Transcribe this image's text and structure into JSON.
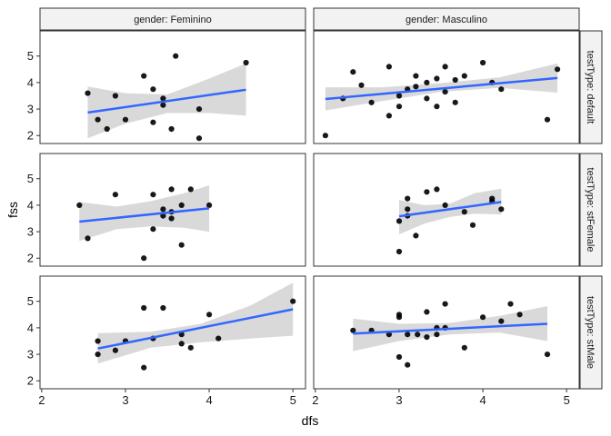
{
  "chart_data": {
    "type": "scatter",
    "xlabel": "dfs",
    "ylabel": "fss",
    "xlim": [
      1.98,
      5.15
    ],
    "ylim": [
      1.7,
      5.95
    ],
    "x_ticks": [
      2,
      3,
      4,
      5
    ],
    "y_ticks": [
      2,
      3,
      4,
      5
    ],
    "column_facets": [
      "gender: Feminino",
      "gender: Masculino"
    ],
    "row_facets": [
      "testType: default",
      "testType: stFemale",
      "testType: stMale"
    ],
    "colors": {
      "point": "#000000",
      "line": "#3366ff",
      "ribbon": "#d9d9d9"
    },
    "grid": false,
    "panels": [
      {
        "row": 0,
        "col": 0,
        "points": [
          [
            2.55,
            3.6
          ],
          [
            2.67,
            2.6
          ],
          [
            2.78,
            2.25
          ],
          [
            2.88,
            3.5
          ],
          [
            3.0,
            2.6
          ],
          [
            3.22,
            4.25
          ],
          [
            3.33,
            3.75
          ],
          [
            3.33,
            2.5
          ],
          [
            3.45,
            3.4
          ],
          [
            3.45,
            3.15
          ],
          [
            3.55,
            2.25
          ],
          [
            3.6,
            5.0
          ],
          [
            3.88,
            1.9
          ],
          [
            3.88,
            3.0
          ],
          [
            4.44,
            4.75
          ]
        ],
        "fit": {
          "x": [
            2.55,
            4.44
          ],
          "y": [
            2.87,
            3.73
          ]
        },
        "band": {
          "x": [
            2.55,
            3.0,
            3.5,
            4.0,
            4.44
          ],
          "lo": [
            1.9,
            2.45,
            2.85,
            2.85,
            2.75
          ],
          "hi": [
            3.85,
            3.6,
            3.55,
            4.15,
            4.72
          ]
        }
      },
      {
        "row": 0,
        "col": 1,
        "points": [
          [
            2.12,
            2.0
          ],
          [
            2.33,
            3.4
          ],
          [
            2.45,
            4.4
          ],
          [
            2.55,
            3.9
          ],
          [
            2.67,
            3.25
          ],
          [
            2.88,
            4.6
          ],
          [
            2.88,
            2.75
          ],
          [
            3.0,
            3.5
          ],
          [
            3.0,
            3.1
          ],
          [
            3.1,
            3.75
          ],
          [
            3.2,
            4.25
          ],
          [
            3.2,
            3.85
          ],
          [
            3.33,
            4.0
          ],
          [
            3.33,
            3.4
          ],
          [
            3.45,
            4.15
          ],
          [
            3.45,
            3.1
          ],
          [
            3.55,
            4.6
          ],
          [
            3.55,
            3.65
          ],
          [
            3.67,
            4.1
          ],
          [
            3.67,
            3.25
          ],
          [
            3.78,
            4.25
          ],
          [
            4.0,
            4.75
          ],
          [
            4.11,
            4.0
          ],
          [
            4.22,
            3.75
          ],
          [
            4.77,
            2.6
          ],
          [
            4.89,
            4.5
          ]
        ],
        "fit": {
          "x": [
            2.12,
            4.89
          ],
          "y": [
            3.38,
            4.17
          ]
        },
        "band": {
          "x": [
            2.12,
            2.8,
            3.5,
            4.2,
            4.89
          ],
          "lo": [
            2.95,
            3.3,
            3.65,
            3.8,
            3.62
          ],
          "hi": [
            3.82,
            3.82,
            3.98,
            4.2,
            4.72
          ]
        }
      },
      {
        "row": 1,
        "col": 0,
        "points": [
          [
            2.45,
            4.0
          ],
          [
            2.55,
            2.75
          ],
          [
            2.88,
            4.4
          ],
          [
            3.22,
            2.0
          ],
          [
            3.33,
            4.4
          ],
          [
            3.33,
            3.1
          ],
          [
            3.45,
            3.85
          ],
          [
            3.45,
            3.6
          ],
          [
            3.55,
            4.6
          ],
          [
            3.55,
            3.5
          ],
          [
            3.55,
            3.75
          ],
          [
            3.67,
            4.0
          ],
          [
            3.67,
            2.5
          ],
          [
            3.78,
            4.6
          ],
          [
            4.0,
            4.0
          ]
        ],
        "fit": {
          "x": [
            2.45,
            4.0
          ],
          "y": [
            3.38,
            3.88
          ]
        },
        "band": {
          "x": [
            2.45,
            2.9,
            3.3,
            3.7,
            4.0
          ],
          "lo": [
            2.65,
            3.1,
            3.2,
            3.15,
            3.0
          ],
          "hi": [
            4.12,
            3.95,
            4.15,
            4.45,
            4.75
          ]
        }
      },
      {
        "row": 1,
        "col": 1,
        "points": [
          [
            3.0,
            3.4
          ],
          [
            3.0,
            2.25
          ],
          [
            3.1,
            4.25
          ],
          [
            3.1,
            3.85
          ],
          [
            3.1,
            3.6
          ],
          [
            3.2,
            2.85
          ],
          [
            3.33,
            4.5
          ],
          [
            3.45,
            4.6
          ],
          [
            3.55,
            4.0
          ],
          [
            3.78,
            3.75
          ],
          [
            3.88,
            3.25
          ],
          [
            4.11,
            4.25
          ],
          [
            4.11,
            4.15
          ],
          [
            4.22,
            3.85
          ]
        ],
        "fit": {
          "x": [
            3.0,
            4.22
          ],
          "y": [
            3.58,
            4.12
          ]
        },
        "band": {
          "x": [
            3.0,
            3.3,
            3.6,
            3.9,
            4.22
          ],
          "lo": [
            2.9,
            3.3,
            3.55,
            3.68,
            3.65
          ],
          "hi": [
            4.2,
            4.0,
            4.05,
            4.45,
            4.62
          ]
        }
      },
      {
        "row": 2,
        "col": 0,
        "points": [
          [
            2.67,
            3.5
          ],
          [
            2.67,
            3.0
          ],
          [
            2.88,
            3.15
          ],
          [
            3.0,
            3.5
          ],
          [
            3.22,
            4.75
          ],
          [
            3.22,
            2.5
          ],
          [
            3.33,
            3.6
          ],
          [
            3.45,
            4.75
          ],
          [
            3.67,
            3.75
          ],
          [
            3.67,
            3.4
          ],
          [
            3.78,
            3.25
          ],
          [
            4.0,
            4.5
          ],
          [
            4.11,
            3.6
          ],
          [
            5.0,
            5.0
          ]
        ],
        "fit": {
          "x": [
            2.67,
            5.0
          ],
          "y": [
            3.22,
            4.7
          ]
        },
        "band": {
          "x": [
            2.67,
            3.3,
            3.9,
            4.5,
            5.0
          ],
          "lo": [
            2.65,
            3.25,
            3.45,
            3.6,
            3.7
          ],
          "hi": [
            3.8,
            3.85,
            4.15,
            4.85,
            5.7
          ]
        }
      },
      {
        "row": 2,
        "col": 1,
        "points": [
          [
            2.45,
            3.9
          ],
          [
            2.67,
            3.9
          ],
          [
            2.88,
            3.75
          ],
          [
            3.0,
            4.5
          ],
          [
            3.0,
            4.4
          ],
          [
            3.0,
            2.9
          ],
          [
            3.1,
            3.75
          ],
          [
            3.1,
            2.6
          ],
          [
            3.22,
            3.75
          ],
          [
            3.33,
            4.6
          ],
          [
            3.33,
            3.65
          ],
          [
            3.45,
            4.0
          ],
          [
            3.45,
            3.75
          ],
          [
            3.55,
            4.9
          ],
          [
            3.55,
            4.0
          ],
          [
            3.78,
            3.25
          ],
          [
            4.0,
            4.4
          ],
          [
            4.22,
            4.25
          ],
          [
            4.33,
            4.9
          ],
          [
            4.44,
            4.5
          ],
          [
            4.77,
            3.0
          ]
        ],
        "fit": {
          "x": [
            2.45,
            4.77
          ],
          "y": [
            3.78,
            4.15
          ]
        },
        "band": {
          "x": [
            2.45,
            3.0,
            3.6,
            4.2,
            4.77
          ],
          "lo": [
            3.12,
            3.5,
            3.75,
            3.82,
            3.5
          ],
          "hi": [
            4.35,
            4.15,
            4.18,
            4.45,
            4.82
          ]
        }
      }
    ]
  }
}
